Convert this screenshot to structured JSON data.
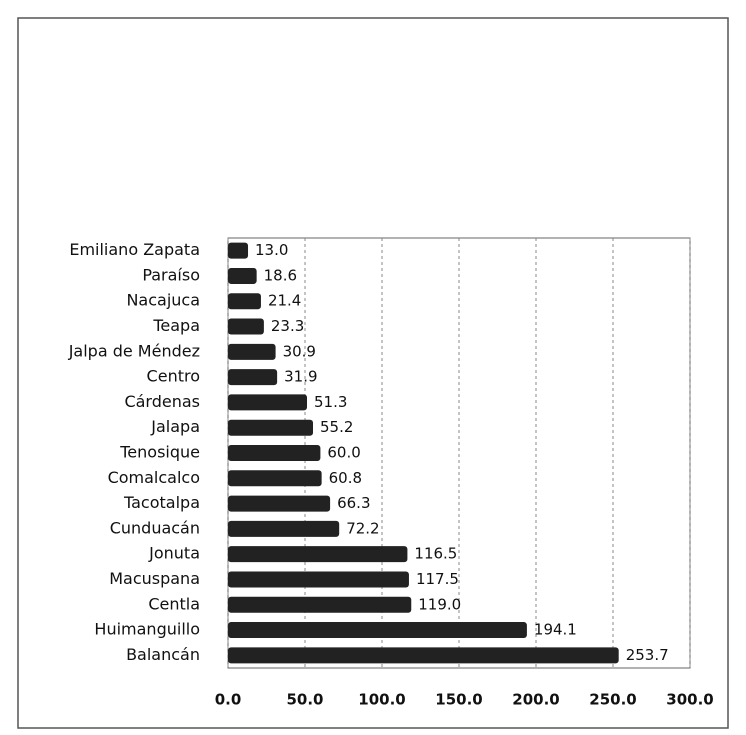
{
  "chart_data": {
    "type": "bar",
    "orientation": "horizontal",
    "categories": [
      "Emiliano Zapata",
      "Paraíso",
      "Nacajuca",
      "Teapa",
      "Jalpa de Méndez",
      "Centro",
      "Cárdenas",
      "Jalapa",
      "Tenosique",
      "Comalcalco",
      "Tacotalpa",
      "Cunduacán",
      "Jonuta",
      "Macuspana",
      "Centla",
      "Huimanguillo",
      "Balancán"
    ],
    "values": [
      13.0,
      18.6,
      21.4,
      23.3,
      30.9,
      31.9,
      51.3,
      55.2,
      60.0,
      60.8,
      66.3,
      72.2,
      116.5,
      117.5,
      119.0,
      194.1,
      253.7
    ],
    "value_labels": [
      "13.0",
      "18.6",
      "21.4",
      "23.3",
      "30.9",
      "31.9",
      "51.3",
      "55.2",
      "60.0",
      "60.8",
      "66.3",
      "72.2",
      "116.5",
      "117.5",
      "119.0",
      "194.1",
      "253.7"
    ],
    "color": "#222222",
    "xlim": [
      0,
      300
    ],
    "xticks": [
      {
        "value": 0,
        "label": "0.0"
      },
      {
        "value": 50,
        "label": "50.0"
      },
      {
        "value": 100,
        "label": "100.0"
      },
      {
        "value": 150,
        "label": "150.0"
      },
      {
        "value": 200,
        "label": "200.0"
      },
      {
        "value": 250,
        "label": "250.0"
      },
      {
        "value": 300,
        "label": "300.0"
      }
    ],
    "grid": true
  }
}
